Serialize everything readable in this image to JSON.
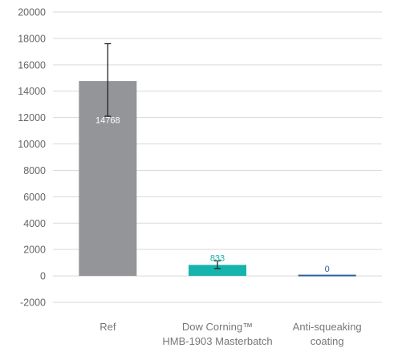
{
  "chart_data": {
    "type": "bar",
    "title": "",
    "xlabel": "",
    "ylabel": "",
    "ylim": [
      -2000,
      20000
    ],
    "yticks": [
      20000,
      18000,
      16000,
      14000,
      12000,
      10000,
      8000,
      6000,
      4000,
      2000,
      0,
      -2000
    ],
    "grid": true,
    "categories": [
      [
        "Ref"
      ],
      [
        "Dow Corning™",
        "HMB-1903 Masterbatch"
      ],
      [
        "Anti-squeaking",
        "coating"
      ]
    ],
    "values": [
      14768,
      833,
      0
    ],
    "data_labels": [
      "14768",
      "833",
      "0"
    ],
    "error_bars": [
      {
        "low": 12100,
        "high": 17600
      },
      {
        "low": 560,
        "high": 1150
      },
      null
    ],
    "colors": {
      "bars": [
        "#939598",
        "#17b3ad",
        "#2d5f9a"
      ],
      "data_labels": [
        "#ffffff",
        "#17b3ad",
        "#2d5f9a"
      ],
      "grid": "#d9d9d9",
      "error_bar": "#222222"
    }
  }
}
